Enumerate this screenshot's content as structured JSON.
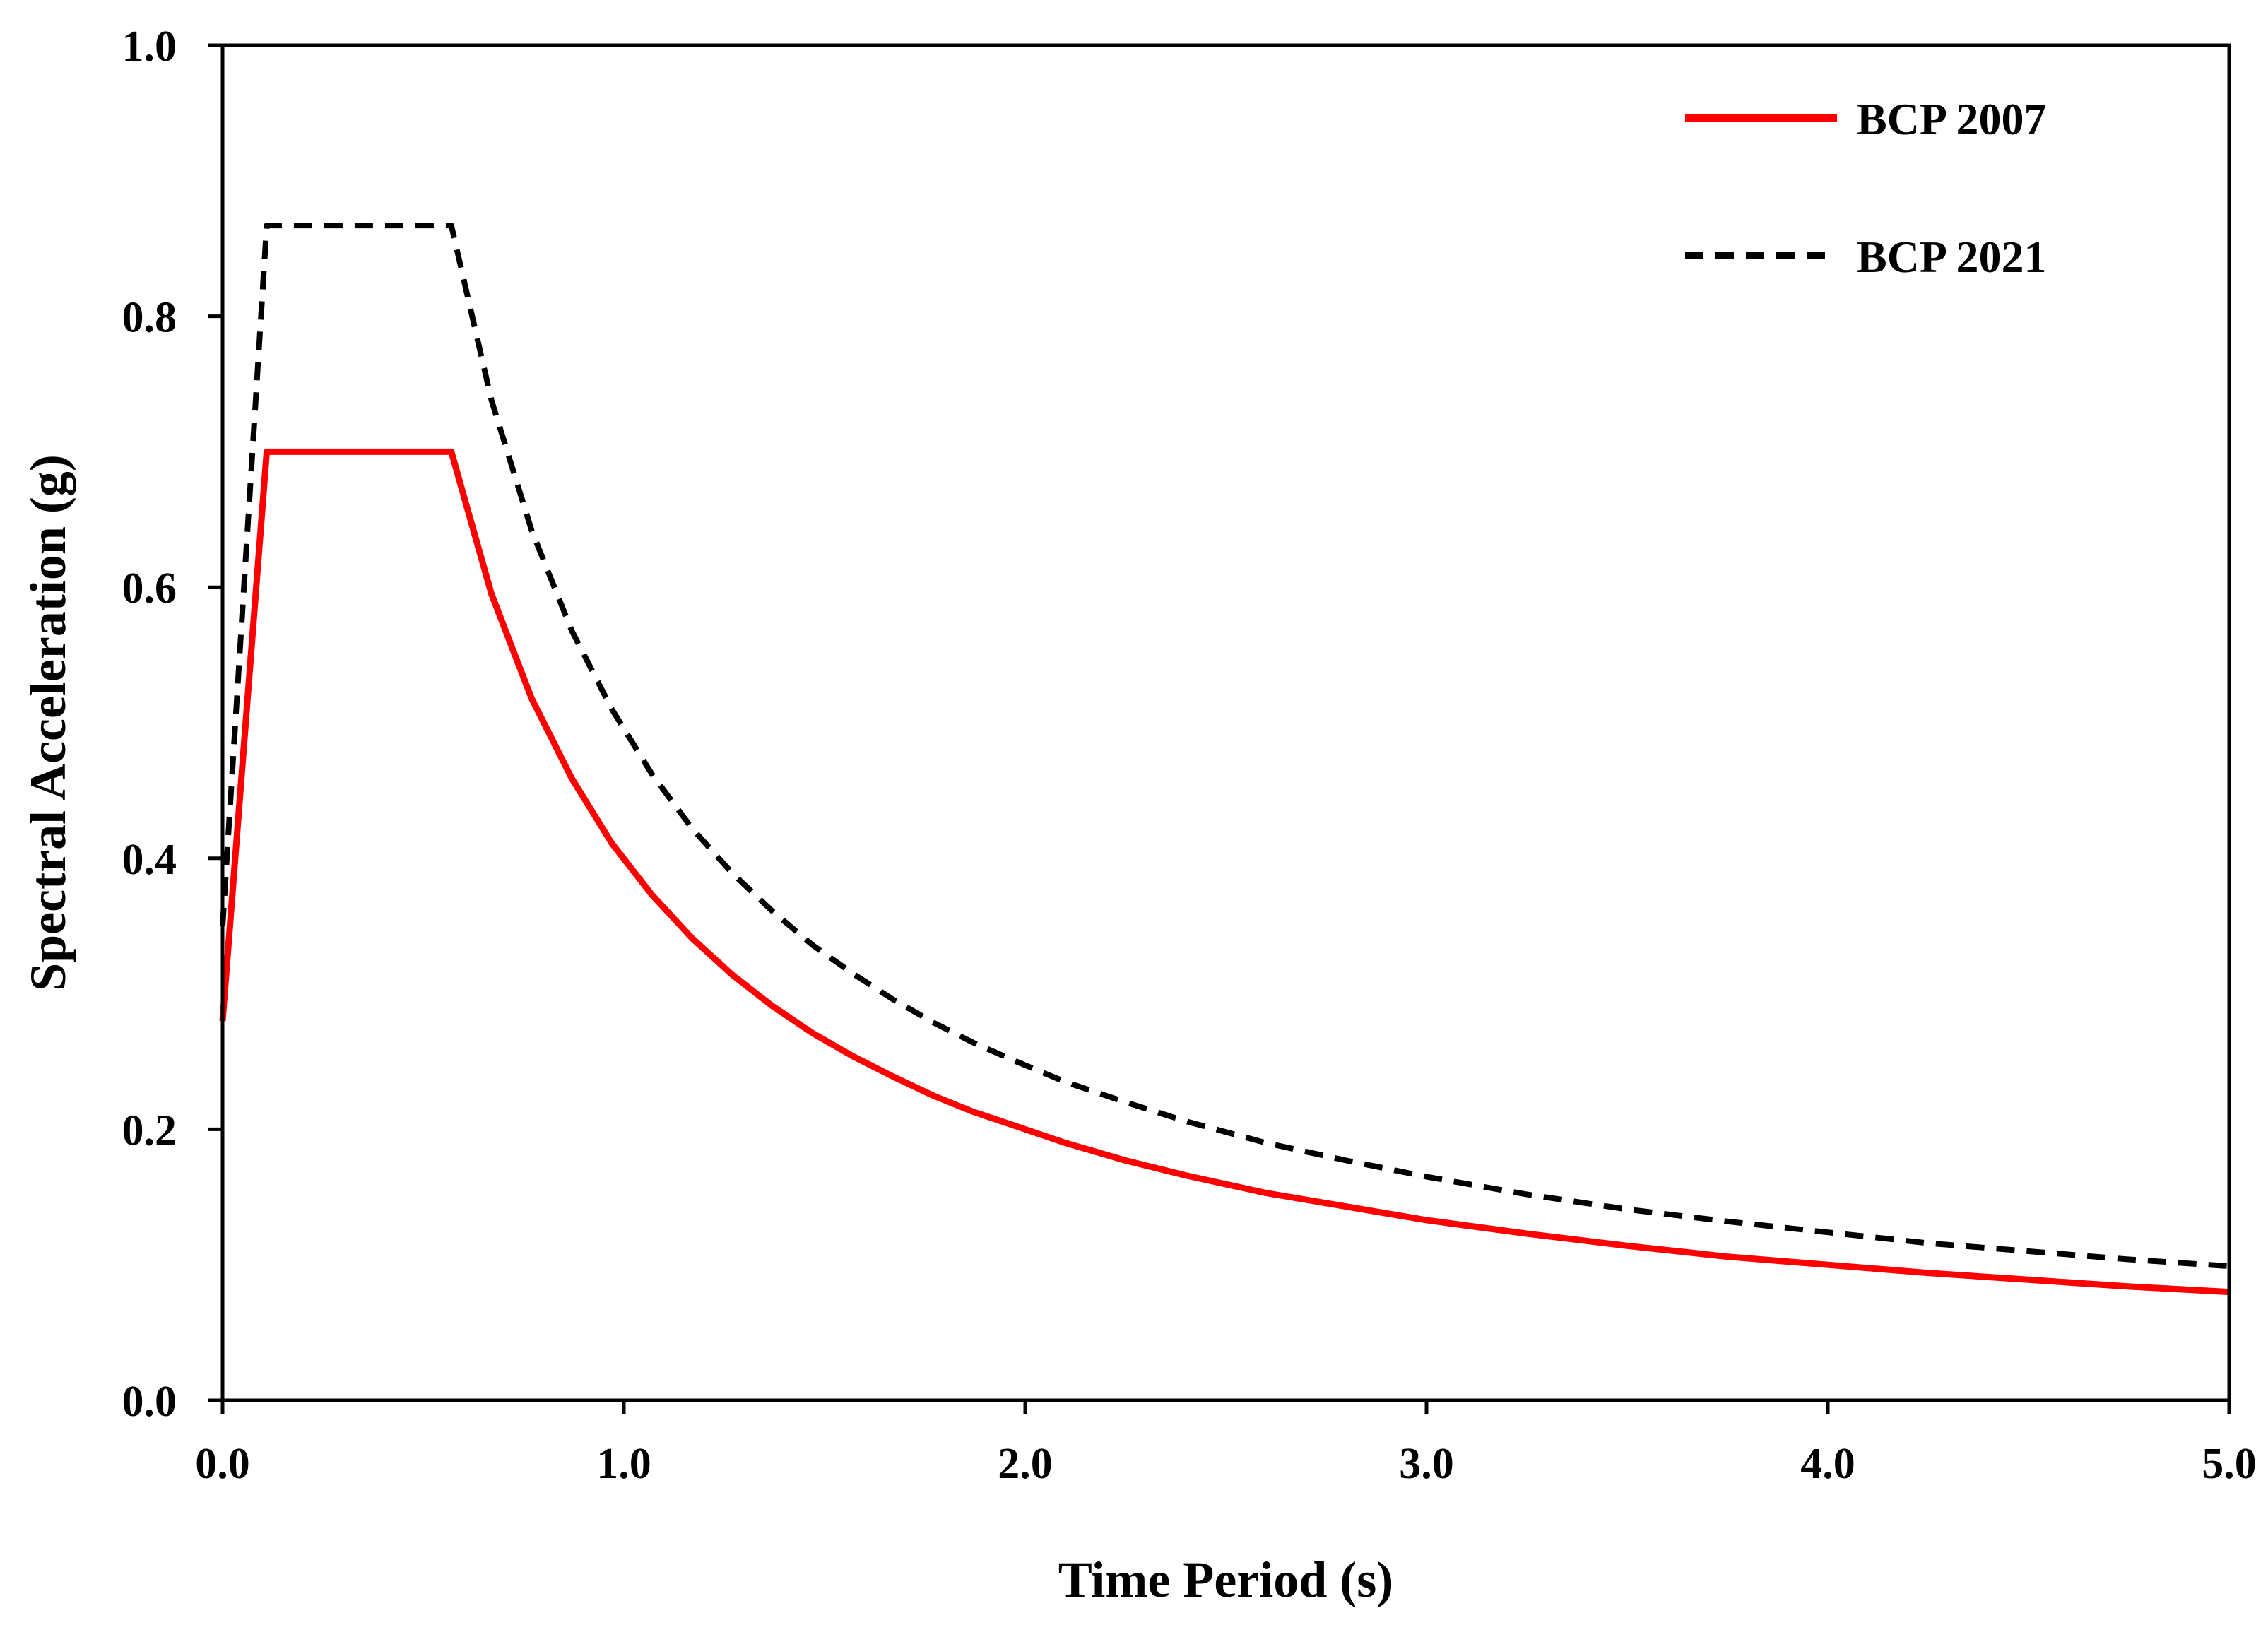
{
  "chart_data": {
    "type": "line",
    "title": "",
    "xlabel": "Time Period (s)",
    "ylabel": "Spectral Acceleration (g)",
    "xlim": [
      0,
      5
    ],
    "ylim": [
      0,
      1
    ],
    "xticks": [
      "0.0",
      "1.0",
      "2.0",
      "3.0",
      "4.0",
      "5.0"
    ],
    "yticks": [
      "0.0",
      "0.2",
      "0.4",
      "0.6",
      "0.8",
      "1.0"
    ],
    "grid": false,
    "legend_position": "top-right",
    "series": [
      {
        "name": "BCP 2007",
        "color": "#ff0000",
        "style": "solid",
        "x": [
          0.0,
          0.11,
          0.2,
          0.3,
          0.4,
          0.5,
          0.57,
          0.67,
          0.77,
          0.87,
          0.97,
          1.07,
          1.17,
          1.27,
          1.37,
          1.47,
          1.57,
          1.67,
          1.77,
          1.87,
          1.97,
          2.1,
          2.25,
          2.4,
          2.6,
          2.8,
          3.0,
          3.25,
          3.5,
          3.75,
          4.0,
          4.25,
          4.5,
          4.75,
          5.0
        ],
        "values": [
          0.28,
          0.7,
          0.7,
          0.7,
          0.7,
          0.7,
          0.7,
          0.595,
          0.518,
          0.459,
          0.411,
          0.373,
          0.341,
          0.314,
          0.291,
          0.271,
          0.254,
          0.239,
          0.225,
          0.213,
          0.203,
          0.19,
          0.177,
          0.166,
          0.153,
          0.143,
          0.133,
          0.123,
          0.114,
          0.106,
          0.1,
          0.094,
          0.089,
          0.084,
          0.08
        ]
      },
      {
        "name": "BCP 2021",
        "color": "#000000",
        "style": "dashed",
        "x": [
          0.0,
          0.11,
          0.2,
          0.3,
          0.4,
          0.5,
          0.57,
          0.67,
          0.77,
          0.87,
          0.97,
          1.07,
          1.17,
          1.27,
          1.37,
          1.47,
          1.57,
          1.67,
          1.77,
          1.87,
          1.97,
          2.1,
          2.25,
          2.4,
          2.6,
          2.8,
          3.0,
          3.25,
          3.5,
          3.75,
          4.0,
          4.25,
          4.5,
          4.75,
          5.0
        ],
        "values": [
          0.35,
          0.867,
          0.867,
          0.867,
          0.867,
          0.867,
          0.867,
          0.738,
          0.642,
          0.568,
          0.51,
          0.462,
          0.422,
          0.389,
          0.361,
          0.336,
          0.315,
          0.296,
          0.279,
          0.264,
          0.251,
          0.235,
          0.22,
          0.206,
          0.19,
          0.177,
          0.165,
          0.152,
          0.141,
          0.132,
          0.124,
          0.116,
          0.11,
          0.104,
          0.099
        ]
      }
    ]
  }
}
